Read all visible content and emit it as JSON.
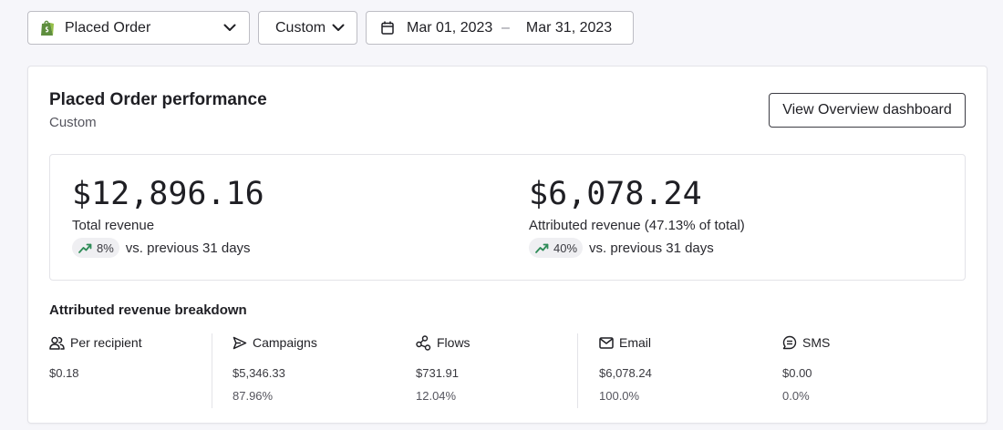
{
  "filters": {
    "metric": {
      "label": "Placed Order",
      "icon": "shopify-icon"
    },
    "period": {
      "label": "Custom"
    },
    "date_range": {
      "start": "Mar 01, 2023",
      "separator": "–",
      "end": "Mar 31, 2023",
      "icon": "calendar-icon"
    }
  },
  "performance": {
    "title": "Placed Order performance",
    "subtitle": "Custom",
    "overview_button": "View Overview dashboard",
    "total_revenue": {
      "value": "$12,896.16",
      "label": "Total revenue",
      "change": "8%",
      "comparison": "vs. previous 31 days"
    },
    "attributed_revenue": {
      "value": "$6,078.24",
      "label": "Attributed revenue (47.13% of total)",
      "change": "40%",
      "comparison": "vs. previous 31 days"
    }
  },
  "breakdown": {
    "title": "Attributed revenue breakdown",
    "items": [
      {
        "label": "Per recipient",
        "icon": "users-icon",
        "value": "$0.18",
        "percent": ""
      },
      {
        "label": "Campaigns",
        "icon": "send-icon",
        "value": "$5,346.33",
        "percent": "87.96%"
      },
      {
        "label": "Flows",
        "icon": "flows-icon",
        "value": "$731.91",
        "percent": "12.04%"
      },
      {
        "label": "Email",
        "icon": "mail-icon",
        "value": "$6,078.24",
        "percent": "100.0%"
      },
      {
        "label": "SMS",
        "icon": "sms-icon",
        "value": "$0.00",
        "percent": "0.0%"
      }
    ]
  },
  "colors": {
    "trend_up": "#2e8b57",
    "shopify_green": "#5e8e3e"
  }
}
